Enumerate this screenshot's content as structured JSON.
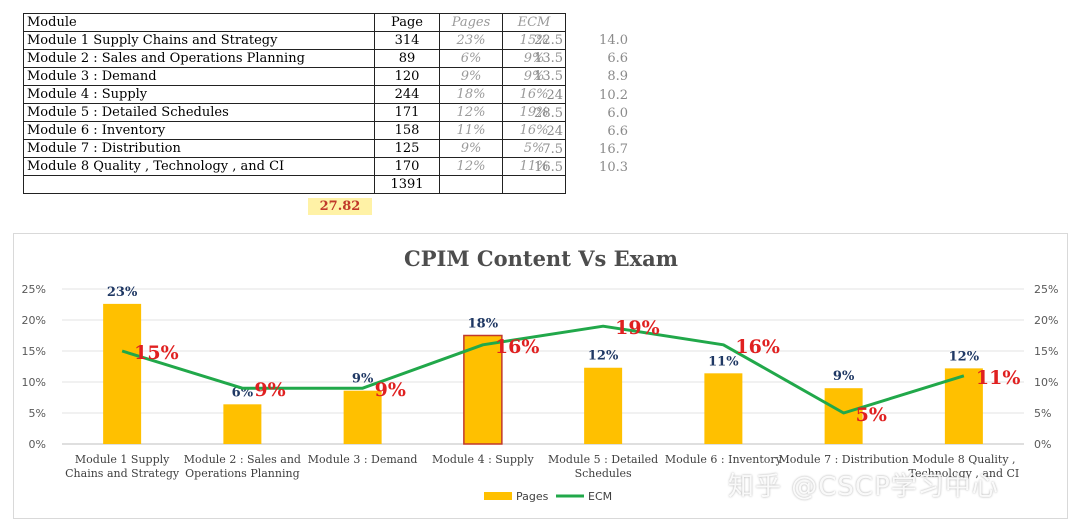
{
  "table": {
    "headers": {
      "module": "Module",
      "page": "Page",
      "pages": "Pages",
      "ecm": "ECM"
    },
    "rows": [
      {
        "module": "Module 1 Supply Chains and Strategy",
        "page": "314",
        "pages": "23%",
        "ecm": "15%",
        "side_a": "22.5",
        "side_b": "14.0"
      },
      {
        "module": "Module 2 : Sales and Operations Planning",
        "page": "89",
        "pages": "6%",
        "ecm": "9%",
        "side_a": "13.5",
        "side_b": "6.6"
      },
      {
        "module": "Module 3 : Demand",
        "page": "120",
        "pages": "9%",
        "ecm": "9%",
        "side_a": "13.5",
        "side_b": "8.9"
      },
      {
        "module": "Module 4 : Supply",
        "page": "244",
        "pages": "18%",
        "ecm": "16%",
        "side_a": "24",
        "side_b": "10.2"
      },
      {
        "module": "Module 5 : Detailed Schedules",
        "page": "171",
        "pages": "12%",
        "ecm": "19%",
        "side_a": "28.5",
        "side_b": "6.0"
      },
      {
        "module": "Module 6 : Inventory",
        "page": "158",
        "pages": "11%",
        "ecm": "16%",
        "side_a": "24",
        "side_b": "6.6"
      },
      {
        "module": "Module 7 : Distribution",
        "page": "125",
        "pages": "9%",
        "ecm": "5%",
        "side_a": "7.5",
        "side_b": "16.7"
      },
      {
        "module": "Module 8 Quality , Technology , and CI",
        "page": "170",
        "pages": "12%",
        "ecm": "11%",
        "side_a": "16.5",
        "side_b": "10.3"
      }
    ],
    "total_page": "1391",
    "average": "27.82"
  },
  "chart_data": {
    "type": "bar",
    "title": "CPIM Content Vs  Exam",
    "categories": [
      [
        "Module 1 Supply",
        "Chains and Strategy"
      ],
      [
        "Module 2 : Sales and",
        "Operations Planning"
      ],
      [
        "Module 3 : Demand"
      ],
      [
        "Module 4 : Supply"
      ],
      [
        "Module 5 : Detailed",
        "Schedules"
      ],
      [
        "Module 6 : Inventory"
      ],
      [
        "Module 7 : Distribution"
      ],
      [
        "Module 8 Quality ,",
        "Technology , and CI"
      ]
    ],
    "series": [
      {
        "name": "Pages",
        "kind": "bar",
        "color": "#ffc000",
        "values": [
          22.6,
          6.4,
          8.6,
          17.5,
          12.3,
          11.4,
          9.0,
          12.2
        ],
        "labels": [
          "23%",
          "6%",
          "9%",
          "18%",
          "12%",
          "11%",
          "9%",
          "12%"
        ]
      },
      {
        "name": "ECM",
        "kind": "line",
        "color": "#21a84a",
        "values": [
          15,
          9,
          9,
          16,
          19,
          16,
          5,
          11
        ],
        "labels": [
          "15%",
          "9%",
          "9%",
          "16%",
          "19%",
          "16%",
          "5%",
          "11%"
        ]
      }
    ],
    "ylim": [
      0,
      25
    ],
    "yticks": [
      "0%",
      "5%",
      "10%",
      "15%",
      "20%",
      "25%"
    ],
    "grid": true,
    "legend": "bottom",
    "highlight_bar_index": 3,
    "colors": {
      "bar_label": "#1f3864",
      "line_label": "#e02020",
      "highlight_border": "#c0392b"
    }
  },
  "watermark": "知乎 @CSCP学习中心"
}
